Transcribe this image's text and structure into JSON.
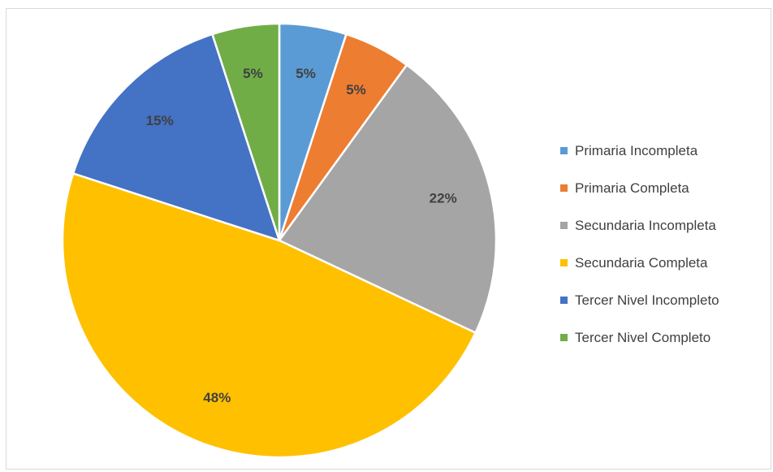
{
  "chart_data": {
    "type": "pie",
    "title": "",
    "categories": [
      "Primaria Incompleta",
      "Primaria Completa",
      "Secundaria Incompleta",
      "Secundaria Completa",
      "Tercer Nivel Incompleto",
      "Tercer Nivel Completo"
    ],
    "values": [
      5,
      5,
      22,
      48,
      15,
      5
    ],
    "data_labels": [
      "5%",
      "5%",
      "22%",
      "48%",
      "15%",
      "5%"
    ],
    "colors": [
      "#5b9bd5",
      "#ed7d31",
      "#a5a5a5",
      "#ffc000",
      "#4472c4",
      "#70ad47"
    ],
    "legend_position": "right",
    "start_angle": "12 o'clock, clockwise"
  }
}
